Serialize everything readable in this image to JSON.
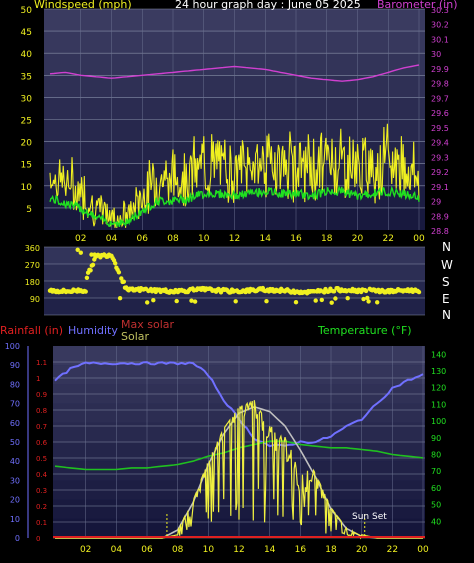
{
  "header": {
    "left_title": "Windspeed (mph)",
    "center_title": "24 hour graph day : June 05 2025",
    "right_title": "Barometer (in)"
  },
  "x_ticks": [
    "02",
    "04",
    "06",
    "08",
    "10",
    "12",
    "14",
    "16",
    "18",
    "20",
    "22",
    "00"
  ],
  "compass": [
    "N",
    "W",
    "S",
    "E",
    "N"
  ],
  "bottom_legend": {
    "rainfall": "Rainfall (in)",
    "humidity": "Humidity",
    "max_solar": "Max solar",
    "solar": "Solar",
    "temperature": "Temperature (°F)"
  },
  "annotations": {
    "sun_set": "Sun Set"
  },
  "colors": {
    "plot_bg": "#141850",
    "wind_gust": "#f0f020",
    "wind_avg": "#20e020",
    "barometer": "#d040d0",
    "humidity": "#7070ff",
    "temperature": "#20c020",
    "solar": "#f0f040",
    "max_solar": "#c0c0c0",
    "rain": "#e02020"
  },
  "chart_data": [
    {
      "type": "line",
      "title": "24 hour graph day : June 05 2025",
      "xlabel": "",
      "ylabel": "Windspeed (mph)",
      "y2label": "Barometer (in)",
      "ylim": [
        0,
        50
      ],
      "y2lim": [
        28.8,
        30.3
      ],
      "y_ticks": [
        5,
        10,
        15,
        20,
        25,
        30,
        35,
        40,
        45,
        50
      ],
      "y2_ticks": [
        "28.8",
        "28.9",
        "29",
        "29.1",
        "29.2",
        "29.3",
        "29.4",
        "29.5",
        "29.6",
        "29.7",
        "29.8",
        "29.9",
        "30",
        "30.1",
        "30.2",
        "30.3"
      ],
      "x": [
        0,
        1,
        2,
        3,
        4,
        5,
        6,
        7,
        8,
        9,
        10,
        11,
        12,
        13,
        14,
        15,
        16,
        17,
        18,
        19,
        20,
        21,
        22,
        23,
        24
      ],
      "series": [
        {
          "name": "Windspeed (mph)",
          "axis": "left",
          "values": [
            13,
            11,
            9,
            5,
            3,
            3,
            8,
            12,
            12,
            13,
            15,
            15,
            14,
            15,
            16,
            15,
            15,
            14,
            16,
            16,
            14,
            15,
            16,
            15,
            13
          ]
        },
        {
          "name": "Barometer (in)",
          "axis": "right",
          "values": [
            29.86,
            29.87,
            29.85,
            29.84,
            29.83,
            29.84,
            29.85,
            29.86,
            29.87,
            29.88,
            29.89,
            29.9,
            29.91,
            29.9,
            29.89,
            29.87,
            29.85,
            29.83,
            29.82,
            29.81,
            29.82,
            29.84,
            29.87,
            29.9,
            29.92
          ]
        }
      ],
      "grid": true
    },
    {
      "type": "scatter",
      "ylabel": "Wind direction",
      "ylim": [
        0,
        360
      ],
      "y_ticks": [
        0,
        90,
        180,
        270,
        360
      ],
      "x": [
        0,
        1,
        2,
        3,
        4,
        5,
        6,
        7,
        8,
        9,
        10,
        11,
        12,
        13,
        14,
        15,
        16,
        17,
        18,
        19,
        20,
        21,
        22,
        23,
        24
      ],
      "series": [
        {
          "name": "Wind direction",
          "values": [
            130,
            125,
            130,
            310,
            320,
            130,
            135,
            130,
            125,
            130,
            135,
            130,
            125,
            130,
            135,
            130,
            125,
            120,
            130,
            135,
            130,
            130,
            125,
            130,
            130
          ]
        }
      ],
      "grid": true
    },
    {
      "type": "line",
      "ylabel_left": "Rainfall (in)",
      "ylabel_right": "Temperature (°F)",
      "ylim_humidity": [
        0,
        100
      ],
      "ylim_rain": [
        0,
        1.2
      ],
      "ylim_temperature": [
        30,
        145
      ],
      "humidity_ticks": [
        0,
        10,
        20,
        30,
        40,
        50,
        60,
        70,
        80,
        90,
        100
      ],
      "rain_ticks": [
        "0",
        "0.1",
        "0.2",
        "0.3",
        "0.4",
        "0.5",
        "0.6",
        "0.7",
        "0.8",
        "0.9",
        "1",
        "1.1"
      ],
      "temperature_ticks": [
        40,
        50,
        60,
        70,
        80,
        90,
        100,
        110,
        120,
        130,
        140
      ],
      "x": [
        0,
        1,
        2,
        3,
        4,
        5,
        6,
        7,
        8,
        9,
        10,
        11,
        12,
        13,
        14,
        15,
        16,
        17,
        18,
        19,
        20,
        21,
        22,
        23,
        24
      ],
      "series": [
        {
          "name": "Humidity",
          "axis": "humidity",
          "values": [
            82,
            88,
            91,
            91,
            91,
            91,
            91,
            91,
            91,
            91,
            85,
            72,
            62,
            52,
            48,
            48,
            50,
            50,
            53,
            58,
            62,
            70,
            78,
            82,
            85
          ]
        },
        {
          "name": "Temperature (°F)",
          "axis": "temperature",
          "values": [
            73,
            72,
            71,
            71,
            71,
            72,
            72,
            73,
            74,
            76,
            79,
            81,
            84,
            86,
            88,
            88,
            86,
            85,
            84,
            84,
            83,
            82,
            80,
            79,
            78
          ]
        },
        {
          "name": "Solar",
          "axis": "rain",
          "values": [
            0,
            0,
            0,
            0,
            0,
            0,
            0,
            0,
            0.02,
            0.18,
            0.45,
            0.65,
            0.78,
            0.82,
            0.6,
            0.55,
            0.3,
            0.35,
            0.18,
            0.08,
            0.02,
            0,
            0,
            0,
            0
          ]
        },
        {
          "name": "Max solar",
          "axis": "rain",
          "values": [
            0,
            0,
            0,
            0,
            0,
            0,
            0,
            0,
            0.05,
            0.22,
            0.46,
            0.65,
            0.78,
            0.82,
            0.79,
            0.7,
            0.55,
            0.38,
            0.18,
            0.06,
            0.01,
            0,
            0,
            0,
            0
          ]
        },
        {
          "name": "Rainfall (in)",
          "axis": "rain",
          "values": [
            0,
            0,
            0,
            0,
            0,
            0,
            0,
            0,
            0,
            0,
            0,
            0,
            0,
            0,
            0,
            0,
            0,
            0,
            0,
            0,
            0,
            0,
            0,
            0,
            0
          ]
        }
      ],
      "grid": true
    }
  ]
}
